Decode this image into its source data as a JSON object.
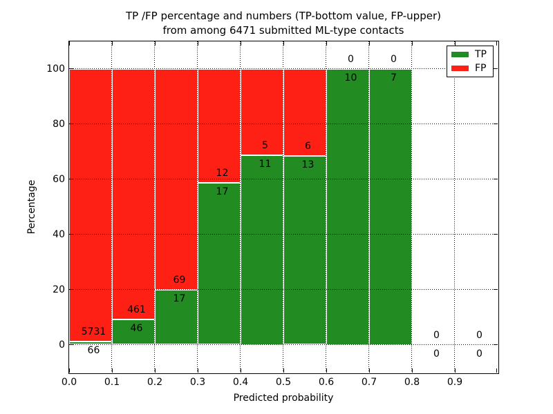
{
  "title": {
    "line1": "TP /FP percentage and numbers (TP-bottom value, FP-upper)",
    "line2": "from among 6471 submitted ML-type contacts"
  },
  "axes": {
    "xlabel": "Predicted probability",
    "ylabel": "Percentage",
    "x_tick_labels": [
      "0.0",
      "0.1",
      "0.2",
      "0.3",
      "0.4",
      "0.5",
      "0.6",
      "0.7",
      "0.8",
      "0.9"
    ],
    "y_tick_labels": [
      "0",
      "20",
      "40",
      "60",
      "80",
      "100"
    ],
    "y_tick_values": [
      0,
      20,
      40,
      60,
      80,
      100
    ],
    "xlim": [
      0.0,
      1.0
    ],
    "ylim": [
      -10,
      110
    ]
  },
  "legend": {
    "position": "upper right",
    "entries": [
      {
        "label": "TP",
        "color": "#228B22"
      },
      {
        "label": "FP",
        "color": "#FF2015"
      }
    ]
  },
  "colors": {
    "tp_green": "#228B22",
    "fp_red": "#FF2015",
    "background": "#FFFFFF",
    "text": "#000000",
    "bar_edge": "#FFFFFF",
    "grid": "#000000"
  },
  "chart_data": {
    "type": "bar",
    "stacked": true,
    "normalized": "each 0.1-wide bin scaled to 100%, labels show raw counts",
    "title": "TP /FP percentage and numbers (TP-bottom value, FP-upper) from among 6471 submitted ML-type contacts",
    "xlabel": "Predicted probability",
    "ylabel": "Percentage",
    "xlim": [
      0.0,
      1.0
    ],
    "ylim": [
      -10,
      110
    ],
    "grid": true,
    "legend_position": "upper right",
    "bin_edges": [
      0.0,
      0.1,
      0.2,
      0.3,
      0.4,
      0.5,
      0.6,
      0.7,
      0.8,
      0.9,
      1.0
    ],
    "series": [
      {
        "name": "TP",
        "color": "#228B22",
        "counts": [
          66,
          46,
          17,
          17,
          11,
          13,
          10,
          7,
          0,
          0
        ]
      },
      {
        "name": "FP",
        "color": "#FF2015",
        "counts": [
          5731,
          461,
          69,
          12,
          5,
          6,
          0,
          0,
          0,
          0
        ]
      }
    ],
    "tp_percent": [
      1.14,
      9.07,
      19.77,
      58.62,
      68.75,
      68.42,
      100,
      100,
      0,
      0
    ],
    "fp_percent": [
      98.86,
      90.93,
      80.23,
      41.38,
      31.25,
      31.58,
      0,
      0,
      0,
      0
    ],
    "total_contacts": 6471
  }
}
